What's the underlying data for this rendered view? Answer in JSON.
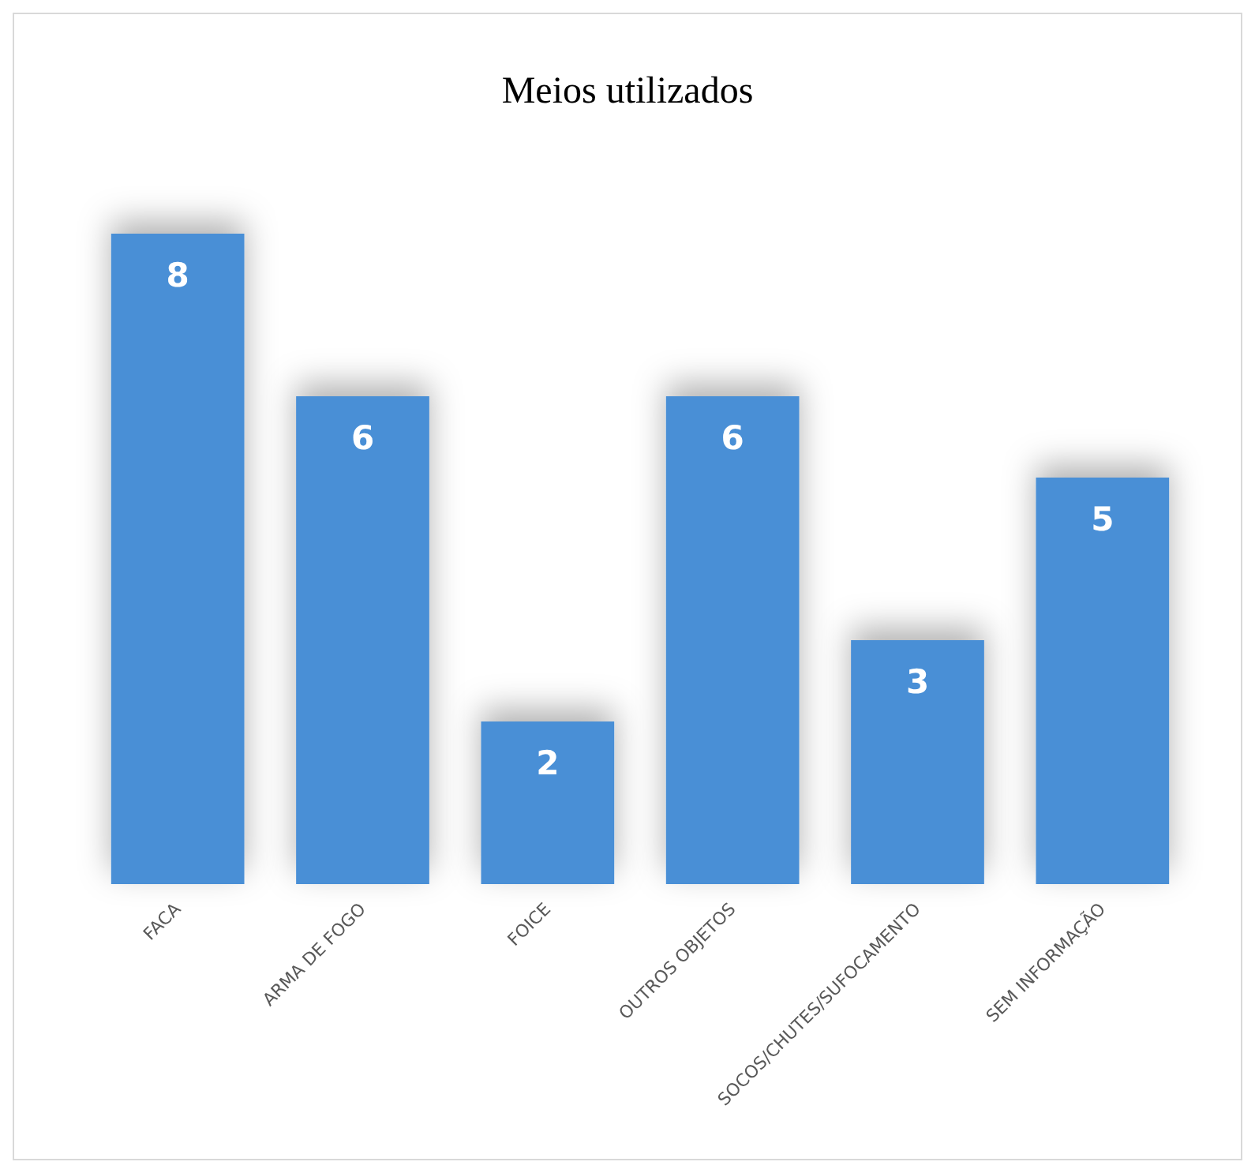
{
  "chart_data": {
    "type": "bar",
    "title": "Meios utilizados",
    "categories": [
      "FACA",
      "ARMA DE FOGO",
      "FOICE",
      "OUTROS OBJETOS",
      "SOCOS/CHUTES/SUFOCAMENTO",
      "SEM INFORMAÇÃO"
    ],
    "values": [
      8,
      6,
      2,
      6,
      3,
      5
    ],
    "color": "#4a8fd6",
    "data_labels": true
  }
}
